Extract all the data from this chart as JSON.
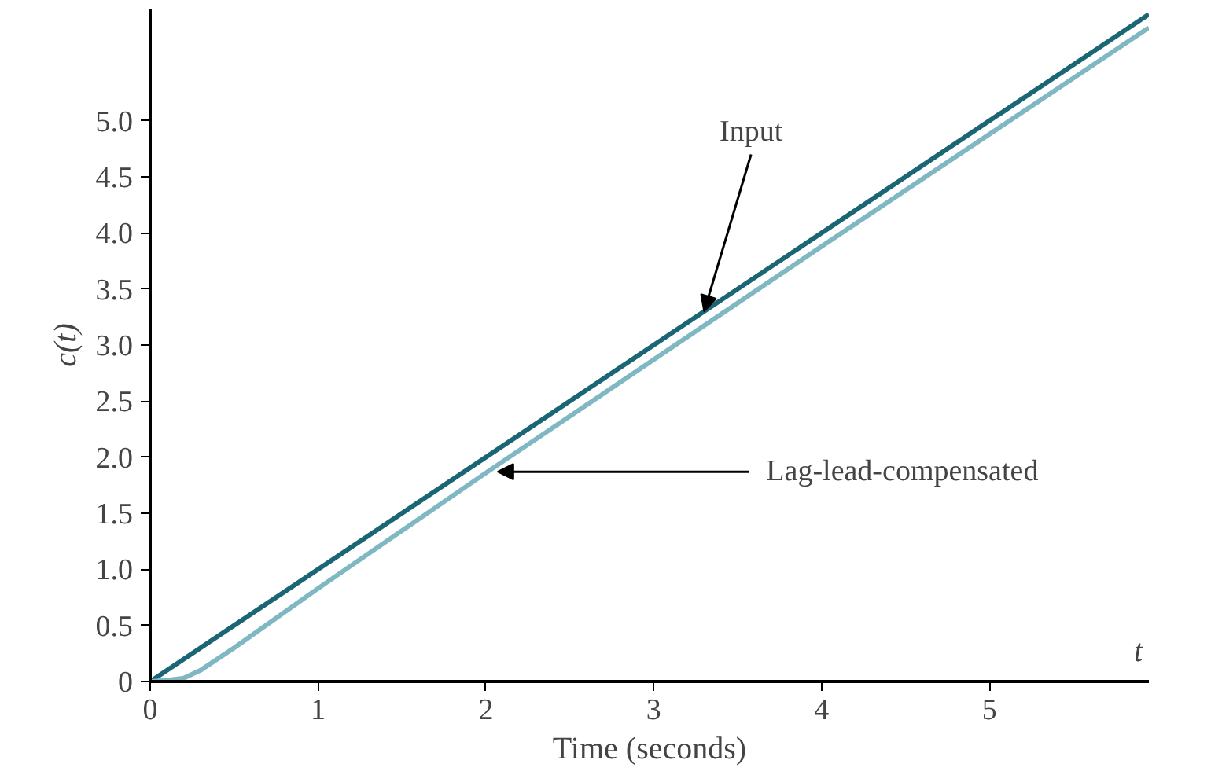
{
  "chart_data": {
    "type": "line",
    "xlabel": "Time (seconds)",
    "ylabel": "c(t)",
    "xlim": [
      0,
      5.95
    ],
    "ylim": [
      0,
      6.0
    ],
    "xticks": [
      0,
      1,
      2,
      3,
      4,
      5
    ],
    "yticks": [
      0,
      {
        "value": 0.5,
        "label": "0.5"
      },
      {
        "value": 1,
        "label": "1.0"
      },
      {
        "value": 1.5,
        "label": "1.5"
      },
      {
        "value": 2,
        "label": "2.0"
      },
      {
        "value": 2.5,
        "label": "2.5"
      },
      {
        "value": 3,
        "label": "3.0"
      },
      {
        "value": 3.5,
        "label": "3.5"
      },
      {
        "value": 4,
        "label": "4.0"
      },
      {
        "value": 4.5,
        "label": "4.5"
      },
      {
        "value": 5,
        "label": "5.0"
      }
    ],
    "grid": false,
    "line_style": "solid",
    "marker": "none",
    "series": [
      {
        "color": "#1b6674",
        "x": [
          0,
          5.95
        ],
        "values": [
          0,
          5.95
        ]
      },
      {
        "color": "#7fb8c2",
        "x": [
          0,
          0.1,
          0.2,
          0.3,
          0.5,
          1,
          2,
          3,
          4,
          5,
          5.95
        ],
        "values": [
          0,
          0.01,
          0.03,
          0.1,
          0.3,
          0.83,
          1.86,
          2.87,
          3.88,
          4.88,
          5.83
        ]
      }
    ],
    "annotations": [
      {
        "text": "Input",
        "x": 3.3,
        "y": 3.3
      },
      {
        "text": "Lag-lead-compensated",
        "x": 2.07,
        "y": 1.87
      },
      "t"
    ]
  }
}
